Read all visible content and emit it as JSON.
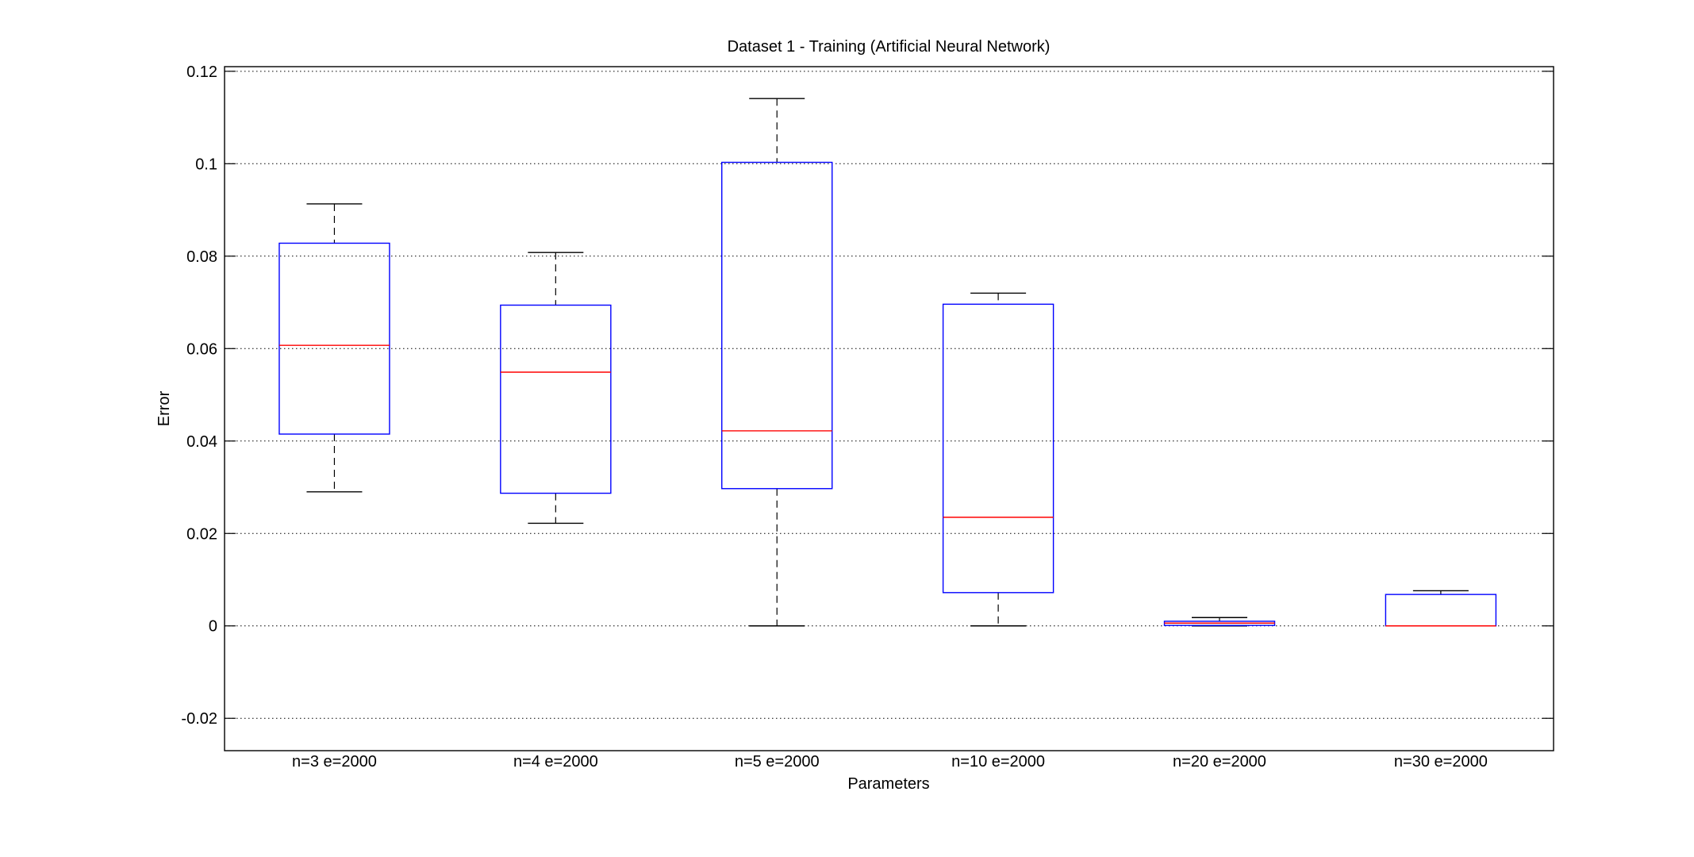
{
  "chart_data": {
    "type": "box",
    "title": "Dataset 1 - Training (Artificial Neural Network)",
    "xlabel": "Parameters",
    "ylabel": "Error",
    "ylim": [
      -0.027,
      0.121
    ],
    "yticks": [
      -0.02,
      0,
      0.02,
      0.04,
      0.06,
      0.08,
      0.1,
      0.12
    ],
    "ytick_labels": [
      "-0.02",
      "0",
      "0.02",
      "0.04",
      "0.06",
      "0.08",
      "0.1",
      "0.12"
    ],
    "grid": "horizontal-dotted",
    "colors": {
      "box": "#0000ff",
      "median": "#ff0000",
      "whisker": "#000000",
      "grid": "#000000"
    },
    "categories": [
      "n=3 e=2000",
      "n=4 e=2000",
      "n=5 e=2000",
      "n=10 e=2000",
      "n=20 e=2000",
      "n=30 e=2000"
    ],
    "boxes": [
      {
        "whisker_low": 0.029,
        "q1": 0.0415,
        "median": 0.0607,
        "q3": 0.0828,
        "whisker_high": 0.0913
      },
      {
        "whisker_low": 0.0222,
        "q1": 0.0287,
        "median": 0.0549,
        "q3": 0.0694,
        "whisker_high": 0.0808
      },
      {
        "whisker_low": 0.0,
        "q1": 0.0297,
        "median": 0.0422,
        "q3": 0.1003,
        "whisker_high": 0.1141
      },
      {
        "whisker_low": 0.0,
        "q1": 0.0072,
        "median": 0.0235,
        "q3": 0.0696,
        "whisker_high": 0.072
      },
      {
        "whisker_low": 0.0,
        "q1": 0.0001,
        "median": 0.0006,
        "q3": 0.001,
        "whisker_high": 0.0018
      },
      {
        "whisker_low": 0.0,
        "q1": 0.0,
        "median": 0.0,
        "q3": 0.0068,
        "whisker_high": 0.0076
      }
    ]
  }
}
